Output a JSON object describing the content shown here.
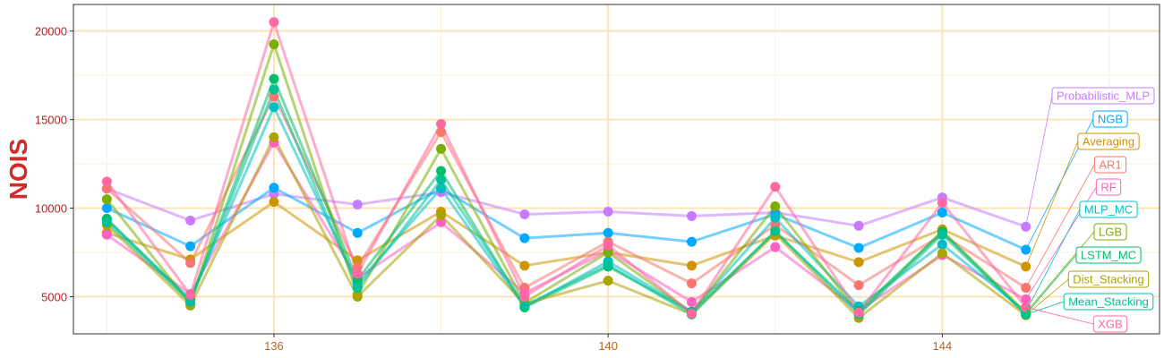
{
  "chart_data": {
    "type": "line",
    "title": "",
    "xlabel": "",
    "ylabel": "NOIS",
    "x": [
      134,
      135,
      136,
      137,
      138,
      139,
      140,
      141,
      142,
      143,
      144,
      145
    ],
    "xlim": [
      133.6,
      146.6
    ],
    "ylim": [
      2900,
      21500
    ],
    "x_ticks": [
      136,
      140,
      144
    ],
    "y_ticks": [
      5000,
      10000,
      15000,
      20000
    ],
    "grid": true,
    "legend": "direct labels on right",
    "series": [
      {
        "name": "Probabilistic_MLP",
        "color": "#C77CFF",
        "values": [
          11100,
          9300,
          10800,
          10200,
          10900,
          9650,
          9800,
          9550,
          9750,
          9000,
          10600,
          8950
        ]
      },
      {
        "name": "NGB",
        "color": "#00A9FF",
        "values": [
          10000,
          7850,
          11150,
          8600,
          11100,
          8300,
          8600,
          8100,
          9650,
          7750,
          9750,
          7650
        ]
      },
      {
        "name": "Averaging",
        "color": "#CD9600",
        "values": [
          8600,
          7100,
          10350,
          7050,
          9800,
          6750,
          7500,
          6750,
          8450,
          6950,
          8800,
          6700
        ]
      },
      {
        "name": "AR1",
        "color": "#F8766D",
        "values": [
          11100,
          6900,
          16300,
          6650,
          14300,
          5500,
          8100,
          5750,
          9050,
          5650,
          8500,
          5500
        ]
      },
      {
        "name": "RF",
        "color": "#FF61C3",
        "values": [
          8500,
          5150,
          13700,
          6050,
          9200,
          5200,
          7600,
          4700,
          7800,
          4200,
          7350,
          4850
        ]
      },
      {
        "name": "MLP_MC",
        "color": "#00BFC4",
        "values": [
          9350,
          4850,
          15700,
          5750,
          11100,
          4400,
          7000,
          4150,
          9450,
          4450,
          7950,
          4150
        ]
      },
      {
        "name": "LGB",
        "color": "#7CAE00",
        "values": [
          10500,
          4600,
          19250,
          5100,
          13350,
          4650,
          7500,
          4100,
          10100,
          4050,
          8700,
          4100
        ]
      },
      {
        "name": "LSTM_MC",
        "color": "#00BE67",
        "values": [
          9400,
          4750,
          17300,
          5950,
          12100,
          4400,
          6700,
          4150,
          8650,
          4200,
          8650,
          4000
        ]
      },
      {
        "name": "Dist_Stacking",
        "color": "#ABA300",
        "values": [
          9050,
          4500,
          14000,
          5000,
          9600,
          4600,
          5900,
          4000,
          8550,
          3800,
          7450,
          3950
        ]
      },
      {
        "name": "Mean_Stacking",
        "color": "#00C19A",
        "values": [
          9200,
          4700,
          16700,
          5500,
          11600,
          4500,
          6800,
          4000,
          8700,
          4000,
          8500,
          4000
        ]
      },
      {
        "name": "XGB",
        "color": "#FF68A1",
        "values": [
          11500,
          5100,
          20500,
          6300,
          14750,
          5000,
          7900,
          4050,
          11200,
          4100,
          10300,
          4400
        ]
      }
    ]
  }
}
